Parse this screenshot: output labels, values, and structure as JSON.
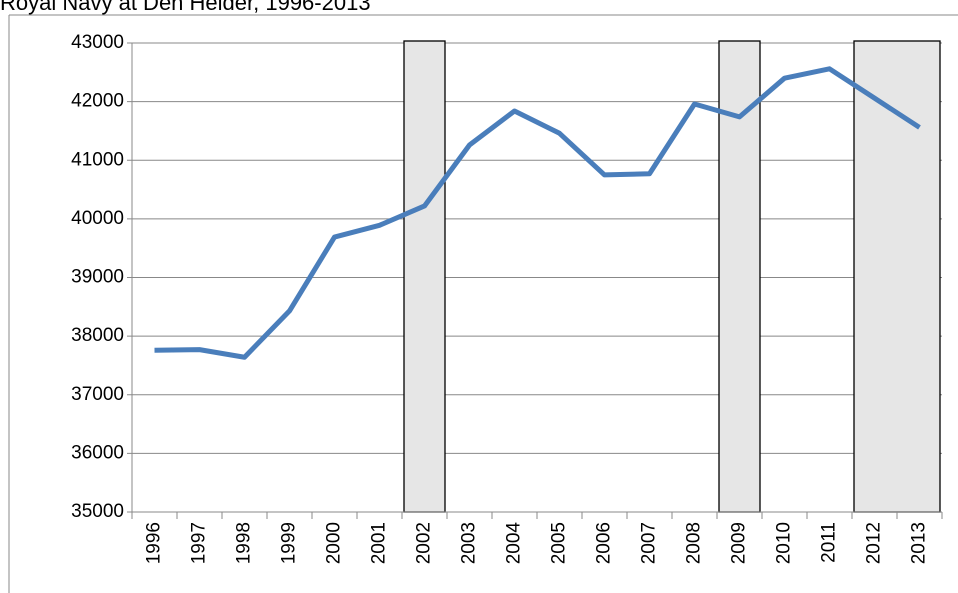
{
  "chart_data": {
    "type": "line",
    "title": "Royal Navy at Den Helder, 1996-2013",
    "categories": [
      "1996",
      "1997",
      "1998",
      "1999",
      "2000",
      "2001",
      "2002",
      "2003",
      "2004",
      "2005",
      "2006",
      "2007",
      "2008",
      "2009",
      "2010",
      "2011",
      "2012",
      "2013"
    ],
    "series": [
      {
        "name": "Royal Navy at Den Helder",
        "color": "#4a7ebb",
        "values": [
          37760,
          37770,
          37640,
          38430,
          39690,
          39890,
          40220,
          41260,
          41840,
          41460,
          40750,
          40770,
          41960,
          41740,
          42400,
          42560,
          42060,
          41560
        ]
      }
    ],
    "ylim": [
      35000,
      43000
    ],
    "yticks": [
      35000,
      36000,
      37000,
      38000,
      39000,
      40000,
      41000,
      42000,
      43000
    ],
    "grid": true,
    "highlight_ranges": [
      [
        6,
        6
      ],
      [
        13,
        13
      ],
      [
        16,
        17
      ]
    ],
    "highlight_color": "#e6e6e6"
  }
}
